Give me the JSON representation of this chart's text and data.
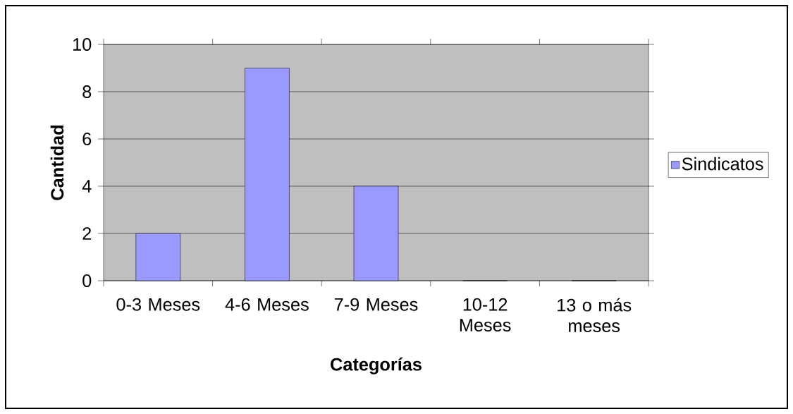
{
  "chart_data": {
    "type": "bar",
    "xlabel": "Categorías",
    "ylabel": "Cantidad",
    "categories": [
      "0-3 Meses",
      "4-6 Meses",
      "7-9 Meses",
      "10-12 Meses",
      "13 o más meses"
    ],
    "series": [
      {
        "name": "Sindicatos",
        "color": "#9999ff",
        "values": [
          2,
          9,
          4,
          0,
          0
        ]
      }
    ],
    "ylim": [
      0,
      10
    ],
    "yticks": [
      0,
      2,
      4,
      6,
      8,
      10
    ],
    "grid": "y",
    "legend": "right"
  }
}
